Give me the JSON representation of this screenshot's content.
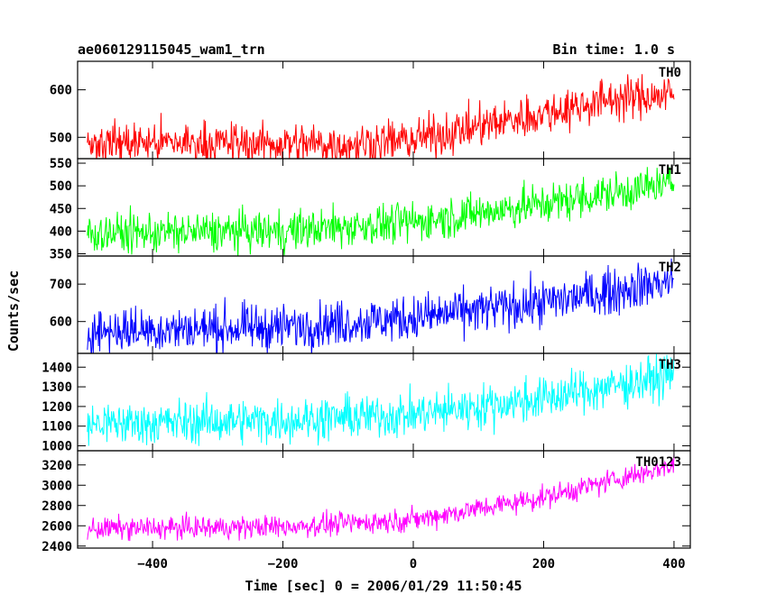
{
  "header": {
    "title": "ae060129115045_wam1_trn",
    "bin_time": "Bin time: 1.0 s"
  },
  "chart_data": {
    "type": "line",
    "title": "ae060129115045_wam1_trn",
    "xlabel": "Time [sec] 0 = 2006/01/29 11:50:45",
    "ylabel": "Counts/sec",
    "xlim": [
      -515,
      425
    ],
    "x_ticks": [
      -400,
      -200,
      0,
      200,
      400
    ],
    "x_tick_labels": [
      "−400",
      "−200",
      "0",
      "200",
      "400"
    ],
    "x_start": -500,
    "x_end": 400,
    "bin_time": 1.0,
    "grid": false,
    "panels": [
      {
        "name": "TH0",
        "color": "#ff0000",
        "ylim": [
          455,
          660
        ],
        "y_ticks": [
          500,
          600
        ],
        "trend": [
          [
            -500,
            490
          ],
          [
            -100,
            485
          ],
          [
            0,
            495
          ],
          [
            200,
            550
          ],
          [
            300,
            580
          ],
          [
            400,
            590
          ]
        ],
        "noise": 22
      },
      {
        "name": "TH1",
        "color": "#00ff00",
        "ylim": [
          345,
          560
        ],
        "y_ticks": [
          350,
          400,
          450,
          500,
          550
        ],
        "trend": [
          [
            -500,
            395
          ],
          [
            -200,
            400
          ],
          [
            0,
            420
          ],
          [
            200,
            460
          ],
          [
            400,
            505
          ]
        ],
        "noise": 22
      },
      {
        "name": "TH2",
        "color": "#0000ff",
        "ylim": [
          515,
          775
        ],
        "y_ticks": [
          600,
          700
        ],
        "trend": [
          [
            -500,
            575
          ],
          [
            -200,
            585
          ],
          [
            0,
            610
          ],
          [
            200,
            650
          ],
          [
            400,
            710
          ]
        ],
        "noise": 30
      },
      {
        "name": "TH3",
        "color": "#00ffff",
        "ylim": [
          975,
          1470
        ],
        "y_ticks": [
          1000,
          1100,
          1200,
          1300,
          1400
        ],
        "trend": [
          [
            -500,
            1110
          ],
          [
            -200,
            1130
          ],
          [
            0,
            1160
          ],
          [
            200,
            1240
          ],
          [
            400,
            1360
          ]
        ],
        "noise": 55
      },
      {
        "name": "TH0123",
        "color": "#ff00ff",
        "ylim": [
          2380,
          3340
        ],
        "y_ticks": [
          2400,
          2600,
          2800,
          3000,
          3200
        ],
        "trend": [
          [
            -500,
            2570
          ],
          [
            -200,
            2590
          ],
          [
            0,
            2660
          ],
          [
            200,
            2880
          ],
          [
            400,
            3200
          ]
        ],
        "noise": 55
      }
    ]
  }
}
